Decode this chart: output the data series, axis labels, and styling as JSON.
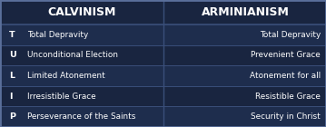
{
  "bg_color": "#192540",
  "header_bg": "#192540",
  "row_colors": [
    "#1e2d4d",
    "#192540"
  ],
  "divider_color": "#3a4f7a",
  "border_color": "#5a6f9a",
  "text_color": "#ffffff",
  "header_left": "CALVINISM",
  "header_right": "ARMINIANISM",
  "rows": [
    {
      "letter": "T",
      "calvinism": "Total Depravity",
      "arminianism": "Total Depravity"
    },
    {
      "letter": "U",
      "calvinism": "Unconditional Election",
      "arminianism": "Prevenient Grace"
    },
    {
      "letter": "L",
      "calvinism": "Limited Atonement",
      "arminianism": "Atonement for all"
    },
    {
      "letter": "I",
      "calvinism": "Irresistible Grace",
      "arminianism": "Resistible Grace"
    },
    {
      "letter": "P",
      "calvinism": "Perseverance of the Saints",
      "arminianism": "Security in Christ"
    }
  ],
  "figsize": [
    3.59,
    1.4
  ],
  "dpi": 100,
  "header_fontsize": 9.0,
  "row_fontsize": 6.4,
  "letter_fontsize": 6.8
}
